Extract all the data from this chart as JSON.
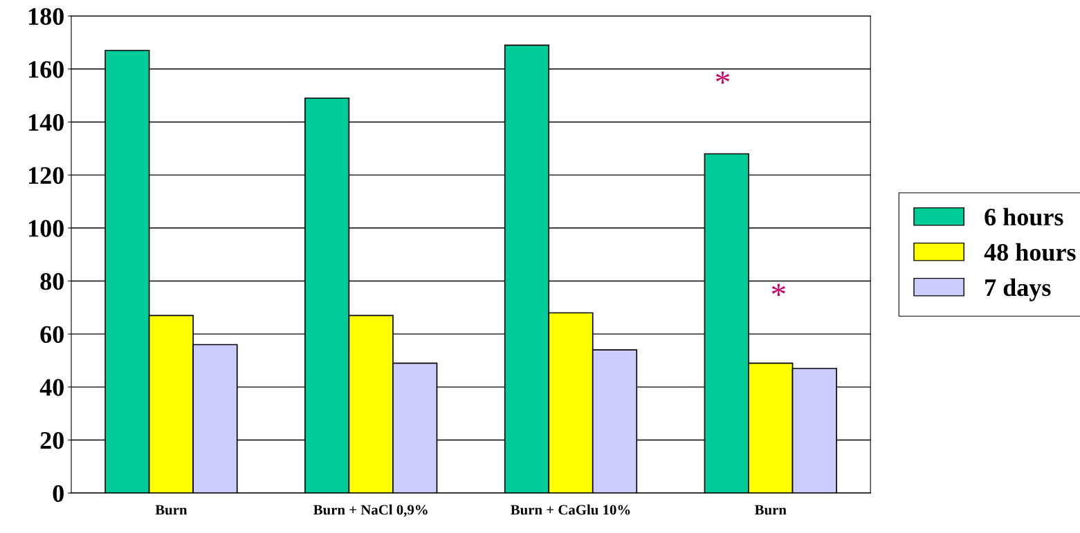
{
  "chart_data": {
    "type": "bar",
    "categories": [
      "Burn",
      "Burn + NaCl 0,9%",
      "Burn + CaGlu 10%",
      "Burn"
    ],
    "series": [
      {
        "name": "6 hours",
        "color": "#00cc99",
        "values": [
          167,
          149,
          169,
          128
        ]
      },
      {
        "name": "48 hours",
        "color": "#ffff00",
        "values": [
          67,
          67,
          68,
          49
        ]
      },
      {
        "name": "7 days",
        "color": "#ccccff",
        "values": [
          56,
          49,
          54,
          47
        ]
      }
    ],
    "ylim": [
      0,
      180
    ],
    "yticks": [
      0,
      20,
      40,
      60,
      80,
      100,
      120,
      140,
      160,
      180
    ],
    "grid": "y",
    "legend": "right",
    "annotations": [
      "*",
      "*"
    ]
  }
}
